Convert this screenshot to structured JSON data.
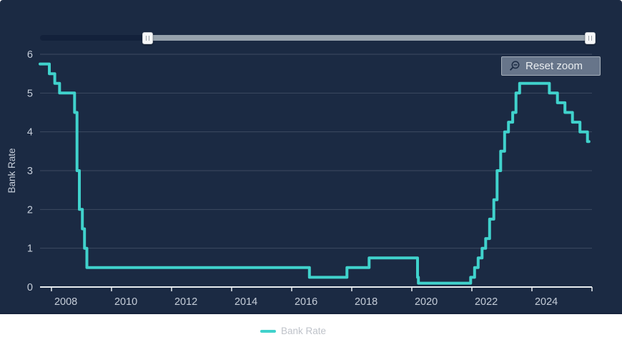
{
  "chart": {
    "reset_zoom_label": "Reset zoom",
    "background_color": "#1B2A43",
    "accent_color": "#40D2CC",
    "grid_color": "#3C4B61",
    "axis_line_color": "#E8ECEF",
    "label_color": "#C5CDD9"
  },
  "navigator": {
    "from_pct": 19.4,
    "to_pct": 99.1
  },
  "chart_data": {
    "type": "line",
    "step": true,
    "title": "",
    "xlabel": "",
    "ylabel": "Bank Rate",
    "grid": true,
    "legend_position": "bottom-center",
    "x_axis": {
      "min": 2007.62,
      "max": 2026.0,
      "ticks": [
        {
          "v": 2008,
          "label": "2008"
        },
        {
          "v": 2010,
          "label": "2010"
        },
        {
          "v": 2012,
          "label": "2012"
        },
        {
          "v": 2014,
          "label": "2014"
        },
        {
          "v": 2016,
          "label": "2016"
        },
        {
          "v": 2018,
          "label": "2018"
        },
        {
          "v": 2020,
          "label": "2020"
        },
        {
          "v": 2022,
          "label": "2022"
        },
        {
          "v": 2024,
          "label": "2024"
        },
        {
          "v": 2026,
          "label": ""
        }
      ]
    },
    "y_axis": {
      "min": 0,
      "max": 6,
      "title": "Bank Rate",
      "ticks": [
        0,
        1,
        2,
        3,
        4,
        5,
        6
      ]
    },
    "series": [
      {
        "name": "Bank Rate",
        "color": "#40D2CC",
        "points": [
          [
            2007.62,
            5.75
          ],
          [
            2007.93,
            5.5
          ],
          [
            2008.11,
            5.25
          ],
          [
            2008.27,
            5.0
          ],
          [
            2008.77,
            4.5
          ],
          [
            2008.85,
            3.0
          ],
          [
            2008.93,
            2.0
          ],
          [
            2009.03,
            1.5
          ],
          [
            2009.1,
            1.0
          ],
          [
            2009.18,
            0.5
          ],
          [
            2016.59,
            0.25
          ],
          [
            2017.84,
            0.5
          ],
          [
            2018.58,
            0.75
          ],
          [
            2020.19,
            0.25
          ],
          [
            2020.22,
            0.1
          ],
          [
            2021.96,
            0.25
          ],
          [
            2022.09,
            0.5
          ],
          [
            2022.21,
            0.75
          ],
          [
            2022.34,
            1.0
          ],
          [
            2022.46,
            1.25
          ],
          [
            2022.59,
            1.75
          ],
          [
            2022.73,
            2.25
          ],
          [
            2022.84,
            3.0
          ],
          [
            2022.96,
            3.5
          ],
          [
            2023.09,
            4.0
          ],
          [
            2023.22,
            4.25
          ],
          [
            2023.36,
            4.5
          ],
          [
            2023.47,
            5.0
          ],
          [
            2023.59,
            5.25
          ],
          [
            2024.58,
            5.0
          ],
          [
            2024.85,
            4.75
          ],
          [
            2025.1,
            4.5
          ],
          [
            2025.35,
            4.25
          ],
          [
            2025.6,
            4.0
          ],
          [
            2025.85,
            3.75
          ],
          [
            2025.9,
            3.75
          ]
        ]
      }
    ]
  }
}
